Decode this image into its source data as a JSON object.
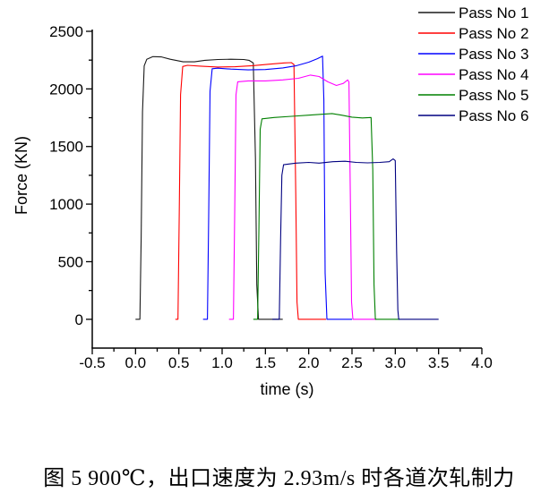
{
  "figure": {
    "caption": "图 5 900℃，出口速度为 2.93m/s 时各道次轧制力"
  },
  "chart_data": {
    "type": "line",
    "title": "",
    "xlabel": "time (s)",
    "ylabel": "Force (KN)",
    "xlim": [
      -0.5,
      4.0
    ],
    "ylim": [
      -250,
      2500
    ],
    "grid": false,
    "legend_position": "top-right",
    "x_tick_labels": [
      "-0.5",
      "0.0",
      "0.5",
      "1.0",
      "1.5",
      "2.0",
      "2.5",
      "3.0",
      "3.5",
      "4.0"
    ],
    "x_tick_values": [
      -0.5,
      0.0,
      0.5,
      1.0,
      1.5,
      2.0,
      2.5,
      3.0,
      3.5,
      4.0
    ],
    "x_minor_tick_values": [
      -0.25,
      0.25,
      0.75,
      1.25,
      1.75,
      2.25,
      2.75,
      3.25,
      3.75
    ],
    "y_tick_labels": [
      "0",
      "500",
      "1000",
      "1500",
      "2000",
      "2500"
    ],
    "y_tick_values": [
      0,
      500,
      1000,
      1500,
      2000,
      2500
    ],
    "y_minor_tick_values": [
      250,
      750,
      1250,
      1750,
      2250
    ],
    "axis_color": "#000000",
    "series": [
      {
        "name": "Pass No 1",
        "color": "#1a1a1a",
        "points": [
          [
            0.0,
            0
          ],
          [
            0.05,
            0
          ],
          [
            0.065,
            700
          ],
          [
            0.08,
            1800
          ],
          [
            0.1,
            2200
          ],
          [
            0.13,
            2258
          ],
          [
            0.2,
            2280
          ],
          [
            0.3,
            2278
          ],
          [
            0.4,
            2258
          ],
          [
            0.55,
            2235
          ],
          [
            0.68,
            2235
          ],
          [
            0.8,
            2248
          ],
          [
            0.95,
            2255
          ],
          [
            1.1,
            2258
          ],
          [
            1.25,
            2255
          ],
          [
            1.31,
            2248
          ],
          [
            1.36,
            2225
          ],
          [
            1.385,
            1400
          ],
          [
            1.4,
            300
          ],
          [
            1.42,
            0
          ],
          [
            1.7,
            0
          ]
        ]
      },
      {
        "name": "Pass No 2",
        "color": "#ff0000",
        "points": [
          [
            0.46,
            0
          ],
          [
            0.49,
            0
          ],
          [
            0.505,
            900
          ],
          [
            0.52,
            1950
          ],
          [
            0.545,
            2195
          ],
          [
            0.6,
            2205
          ],
          [
            0.75,
            2198
          ],
          [
            0.95,
            2190
          ],
          [
            1.15,
            2192
          ],
          [
            1.35,
            2202
          ],
          [
            1.55,
            2215
          ],
          [
            1.72,
            2226
          ],
          [
            1.8,
            2228
          ],
          [
            1.83,
            2212
          ],
          [
            1.85,
            1100
          ],
          [
            1.865,
            150
          ],
          [
            1.88,
            0
          ],
          [
            2.2,
            0
          ]
        ]
      },
      {
        "name": "Pass No 3",
        "color": "#0000ff",
        "points": [
          [
            0.78,
            0
          ],
          [
            0.83,
            0
          ],
          [
            0.845,
            900
          ],
          [
            0.86,
            1980
          ],
          [
            0.885,
            2175
          ],
          [
            0.95,
            2180
          ],
          [
            1.1,
            2172
          ],
          [
            1.3,
            2165
          ],
          [
            1.5,
            2168
          ],
          [
            1.7,
            2182
          ],
          [
            1.85,
            2200
          ],
          [
            2.0,
            2232
          ],
          [
            2.1,
            2262
          ],
          [
            2.16,
            2285
          ],
          [
            2.175,
            1900
          ],
          [
            2.19,
            400
          ],
          [
            2.21,
            0
          ],
          [
            2.5,
            0
          ]
        ]
      },
      {
        "name": "Pass No 4",
        "color": "#ff00ff",
        "points": [
          [
            1.08,
            0
          ],
          [
            1.13,
            0
          ],
          [
            1.145,
            900
          ],
          [
            1.16,
            1950
          ],
          [
            1.18,
            2062
          ],
          [
            1.3,
            2070
          ],
          [
            1.5,
            2070
          ],
          [
            1.7,
            2078
          ],
          [
            1.88,
            2092
          ],
          [
            2.02,
            2120
          ],
          [
            2.12,
            2108
          ],
          [
            2.22,
            2062
          ],
          [
            2.32,
            2030
          ],
          [
            2.4,
            2048
          ],
          [
            2.45,
            2078
          ],
          [
            2.465,
            2060
          ],
          [
            2.48,
            1100
          ],
          [
            2.495,
            150
          ],
          [
            2.51,
            0
          ],
          [
            2.78,
            0
          ]
        ]
      },
      {
        "name": "Pass No 5",
        "color": "#008000",
        "points": [
          [
            1.36,
            0
          ],
          [
            1.41,
            0
          ],
          [
            1.425,
            800
          ],
          [
            1.44,
            1650
          ],
          [
            1.46,
            1740
          ],
          [
            1.6,
            1752
          ],
          [
            1.8,
            1762
          ],
          [
            2.0,
            1772
          ],
          [
            2.15,
            1780
          ],
          [
            2.27,
            1786
          ],
          [
            2.38,
            1772
          ],
          [
            2.5,
            1755
          ],
          [
            2.62,
            1748
          ],
          [
            2.72,
            1752
          ],
          [
            2.74,
            1300
          ],
          [
            2.755,
            300
          ],
          [
            2.77,
            0
          ],
          [
            3.05,
            0
          ]
        ]
      },
      {
        "name": "Pass No 6",
        "color": "#000080",
        "points": [
          [
            1.58,
            0
          ],
          [
            1.66,
            0
          ],
          [
            1.675,
            700
          ],
          [
            1.69,
            1250
          ],
          [
            1.71,
            1342
          ],
          [
            1.85,
            1356
          ],
          [
            2.0,
            1362
          ],
          [
            2.12,
            1356
          ],
          [
            2.28,
            1368
          ],
          [
            2.42,
            1372
          ],
          [
            2.55,
            1362
          ],
          [
            2.68,
            1358
          ],
          [
            2.82,
            1362
          ],
          [
            2.93,
            1368
          ],
          [
            2.975,
            1392
          ],
          [
            3.0,
            1378
          ],
          [
            3.015,
            600
          ],
          [
            3.03,
            80
          ],
          [
            3.04,
            0
          ],
          [
            3.5,
            0
          ]
        ]
      }
    ]
  }
}
